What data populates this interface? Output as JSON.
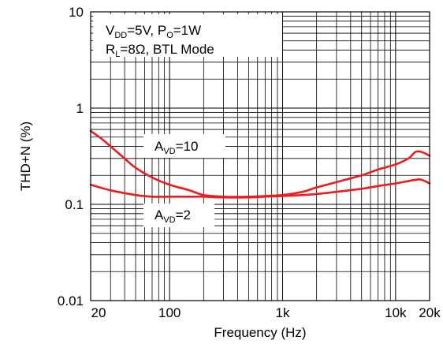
{
  "chart_data": {
    "type": "line",
    "xscale": "log",
    "yscale": "log",
    "xlim": [
      20,
      20000
    ],
    "ylim": [
      0.01,
      10
    ],
    "grid": true,
    "xlabel": "Frequency (Hz)",
    "ylabel": "THD+N (%)",
    "x_ticks": [
      {
        "value": 20,
        "label": "20"
      },
      {
        "value": 100,
        "label": "100"
      },
      {
        "value": 1000,
        "label": "1k"
      },
      {
        "value": 10000,
        "label": "10k"
      },
      {
        "value": 20000,
        "label": "20k"
      }
    ],
    "y_ticks": [
      {
        "value": 10,
        "label": "10"
      },
      {
        "value": 1,
        "label": "1"
      },
      {
        "value": 0.1,
        "label": "0.1"
      },
      {
        "value": 0.01,
        "label": "0.01"
      }
    ],
    "conditions": {
      "line1": {
        "parts": [
          "V",
          "DD",
          "=5V, P",
          "O",
          "=1W"
        ]
      },
      "line2": {
        "parts": [
          "R",
          "L",
          "=8Ω, BTL Mode"
        ]
      }
    },
    "series": [
      {
        "name_parts": [
          "A",
          "VD",
          "=10"
        ],
        "color": "#ee1c1c",
        "x": [
          20,
          25,
          30,
          40,
          50,
          70,
          100,
          150,
          200,
          300,
          500,
          700,
          1000,
          1500,
          2000,
          3000,
          5000,
          7000,
          10000,
          13000,
          15000,
          17000,
          20000
        ],
        "y": [
          0.58,
          0.48,
          0.4,
          0.3,
          0.24,
          0.19,
          0.16,
          0.14,
          0.125,
          0.12,
          0.12,
          0.122,
          0.125,
          0.135,
          0.15,
          0.17,
          0.2,
          0.23,
          0.26,
          0.3,
          0.35,
          0.35,
          0.32
        ]
      },
      {
        "name_parts": [
          "A",
          "VD",
          "=2"
        ],
        "color": "#ee1c1c",
        "x": [
          20,
          30,
          50,
          70,
          100,
          150,
          200,
          300,
          500,
          700,
          1000,
          1500,
          2000,
          3000,
          5000,
          7000,
          10000,
          15000,
          17000,
          20000
        ],
        "y": [
          0.16,
          0.14,
          0.125,
          0.12,
          0.12,
          0.12,
          0.12,
          0.118,
          0.118,
          0.12,
          0.122,
          0.125,
          0.128,
          0.135,
          0.145,
          0.155,
          0.165,
          0.18,
          0.18,
          0.165
        ]
      }
    ]
  }
}
